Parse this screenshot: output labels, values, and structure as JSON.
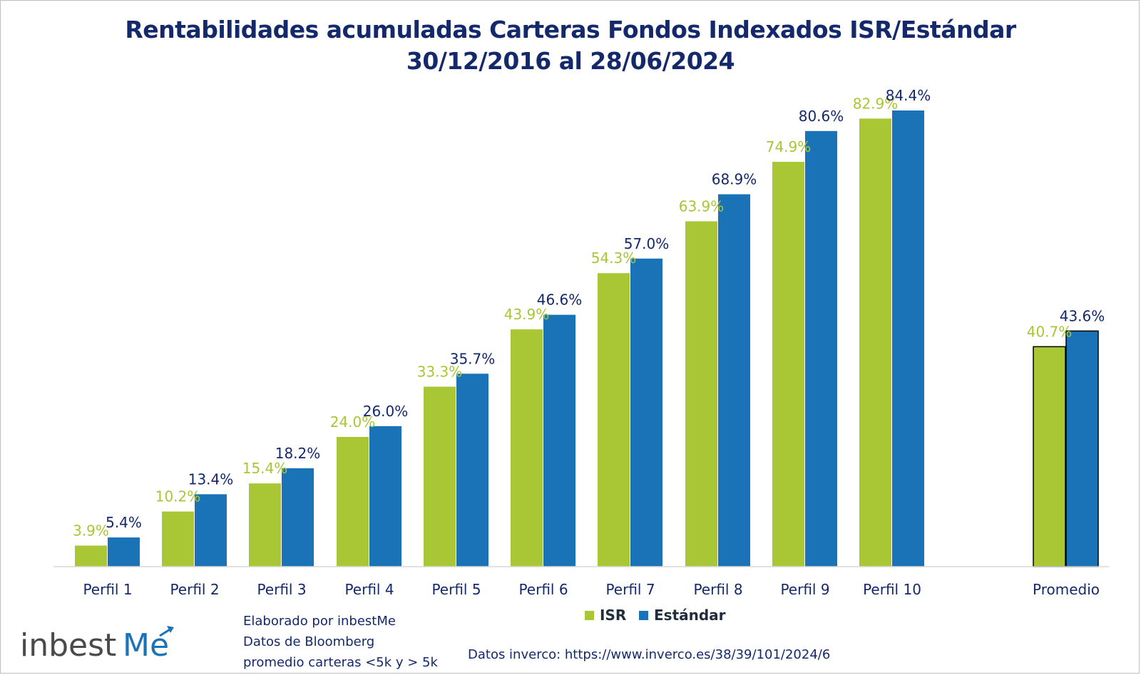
{
  "title_line1": "Rentabilidades acumuladas Carteras Fondos Indexados ISR/Estándar",
  "title_line2": "30/12/2016 al 28/06/2024",
  "colors": {
    "isr": "#a9c634",
    "estandar": "#1b73b7",
    "title": "#14296b",
    "isr_label": "#a9c634",
    "estandar_label": "#14296b"
  },
  "chart_data": {
    "type": "bar",
    "title": "Rentabilidades acumuladas Carteras Fondos Indexados ISR/Estándar 30/12/2016 al 28/06/2024",
    "categories": [
      "Perfil 1",
      "Perfil 2",
      "Perfil 3",
      "Perfil 4",
      "Perfil 5",
      "Perfil 6",
      "Perfil 7",
      "Perfil 8",
      "Perfil 9",
      "Perfil 10",
      "Promedio"
    ],
    "series": [
      {
        "name": "ISR",
        "values": [
          3.9,
          10.2,
          15.4,
          24.0,
          33.3,
          43.9,
          54.3,
          63.9,
          74.9,
          82.9,
          40.7
        ],
        "labels": [
          "3.9%",
          "10.2%",
          "15.4%",
          "24.0%",
          "33.3%",
          "43.9%",
          "54.3%",
          "63.9%",
          "74.9%",
          "82.9%",
          "40.7%"
        ]
      },
      {
        "name": "Estándar",
        "values": [
          5.4,
          13.4,
          18.2,
          26.0,
          35.7,
          46.6,
          57.0,
          68.9,
          80.6,
          84.4,
          43.6
        ],
        "labels": [
          "5.4%",
          "13.4%",
          "18.2%",
          "26.0%",
          "35.7%",
          "46.6%",
          "57.0%",
          "68.9%",
          "80.6%",
          "84.4%",
          "43.6%"
        ]
      }
    ],
    "xlabel": "",
    "ylabel": "",
    "ylim": [
      0,
      87
    ],
    "grid": false,
    "legend": "bottom",
    "value_unit": "%"
  },
  "legend": {
    "isr": "ISR",
    "estandar": "Estándar"
  },
  "notes": {
    "credit1": "Elaborado por inbestMe",
    "credit2": "Datos de Bloomberg",
    "credit3": "promedio carteras <5k y > 5k",
    "source": "Datos inverco: https://www.inverco.es/38/39/101/2024/6"
  },
  "logo": {
    "text_main": "inbest",
    "text_accent": "Me"
  }
}
